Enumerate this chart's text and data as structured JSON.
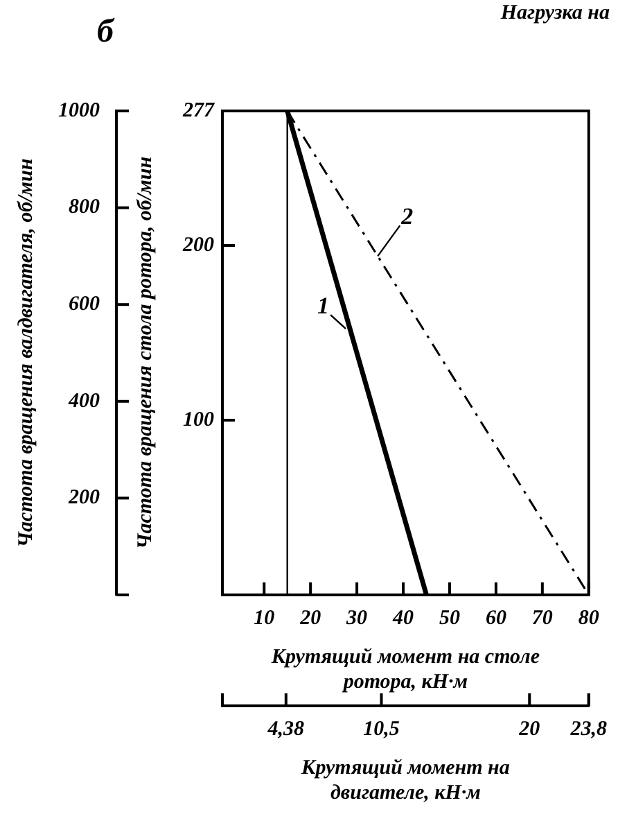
{
  "chart_data": {
    "type": "line",
    "title": "б",
    "xlabel": "Крутящий момент на столе ротора, кН·м",
    "x2label": "Крутящий момент на двигателе, кН·м",
    "ylabel": "Частота вращения стола ротора, об/мин",
    "y2label": "Частота вращения валдвигателя, об/мин",
    "annotations": [
      "Нагрузка на"
    ],
    "xlim": [
      1,
      80
    ],
    "xticks": [
      10,
      20,
      30,
      40,
      50,
      60,
      70,
      80
    ],
    "x2lim": [
      0.3,
      23.8
    ],
    "x2ticks": [
      {
        "value": 4.38,
        "label": "4,38"
      },
      {
        "value": 10.5,
        "label": "10,5"
      },
      20,
      {
        "value": 23.8,
        "label": "23,8"
      }
    ],
    "ylim": [
      0,
      277
    ],
    "yticks": [
      100,
      200,
      277
    ],
    "y2lim": [
      0,
      1000
    ],
    "y2ticks": [
      200,
      400,
      600,
      800,
      1000
    ],
    "ref_lines": [
      {
        "axis": "x",
        "value": 15,
        "color": "#000000"
      }
    ],
    "series": [
      {
        "name": "1",
        "color": "#000000",
        "x": [
          15,
          45
        ],
        "values": [
          277,
          0
        ],
        "line_style": "solid"
      },
      {
        "name": "2",
        "color": "#000000",
        "x": [
          15,
          80
        ],
        "values": [
          277,
          0
        ],
        "line_style": "dashed"
      }
    ],
    "grid": false,
    "marker": "none"
  }
}
